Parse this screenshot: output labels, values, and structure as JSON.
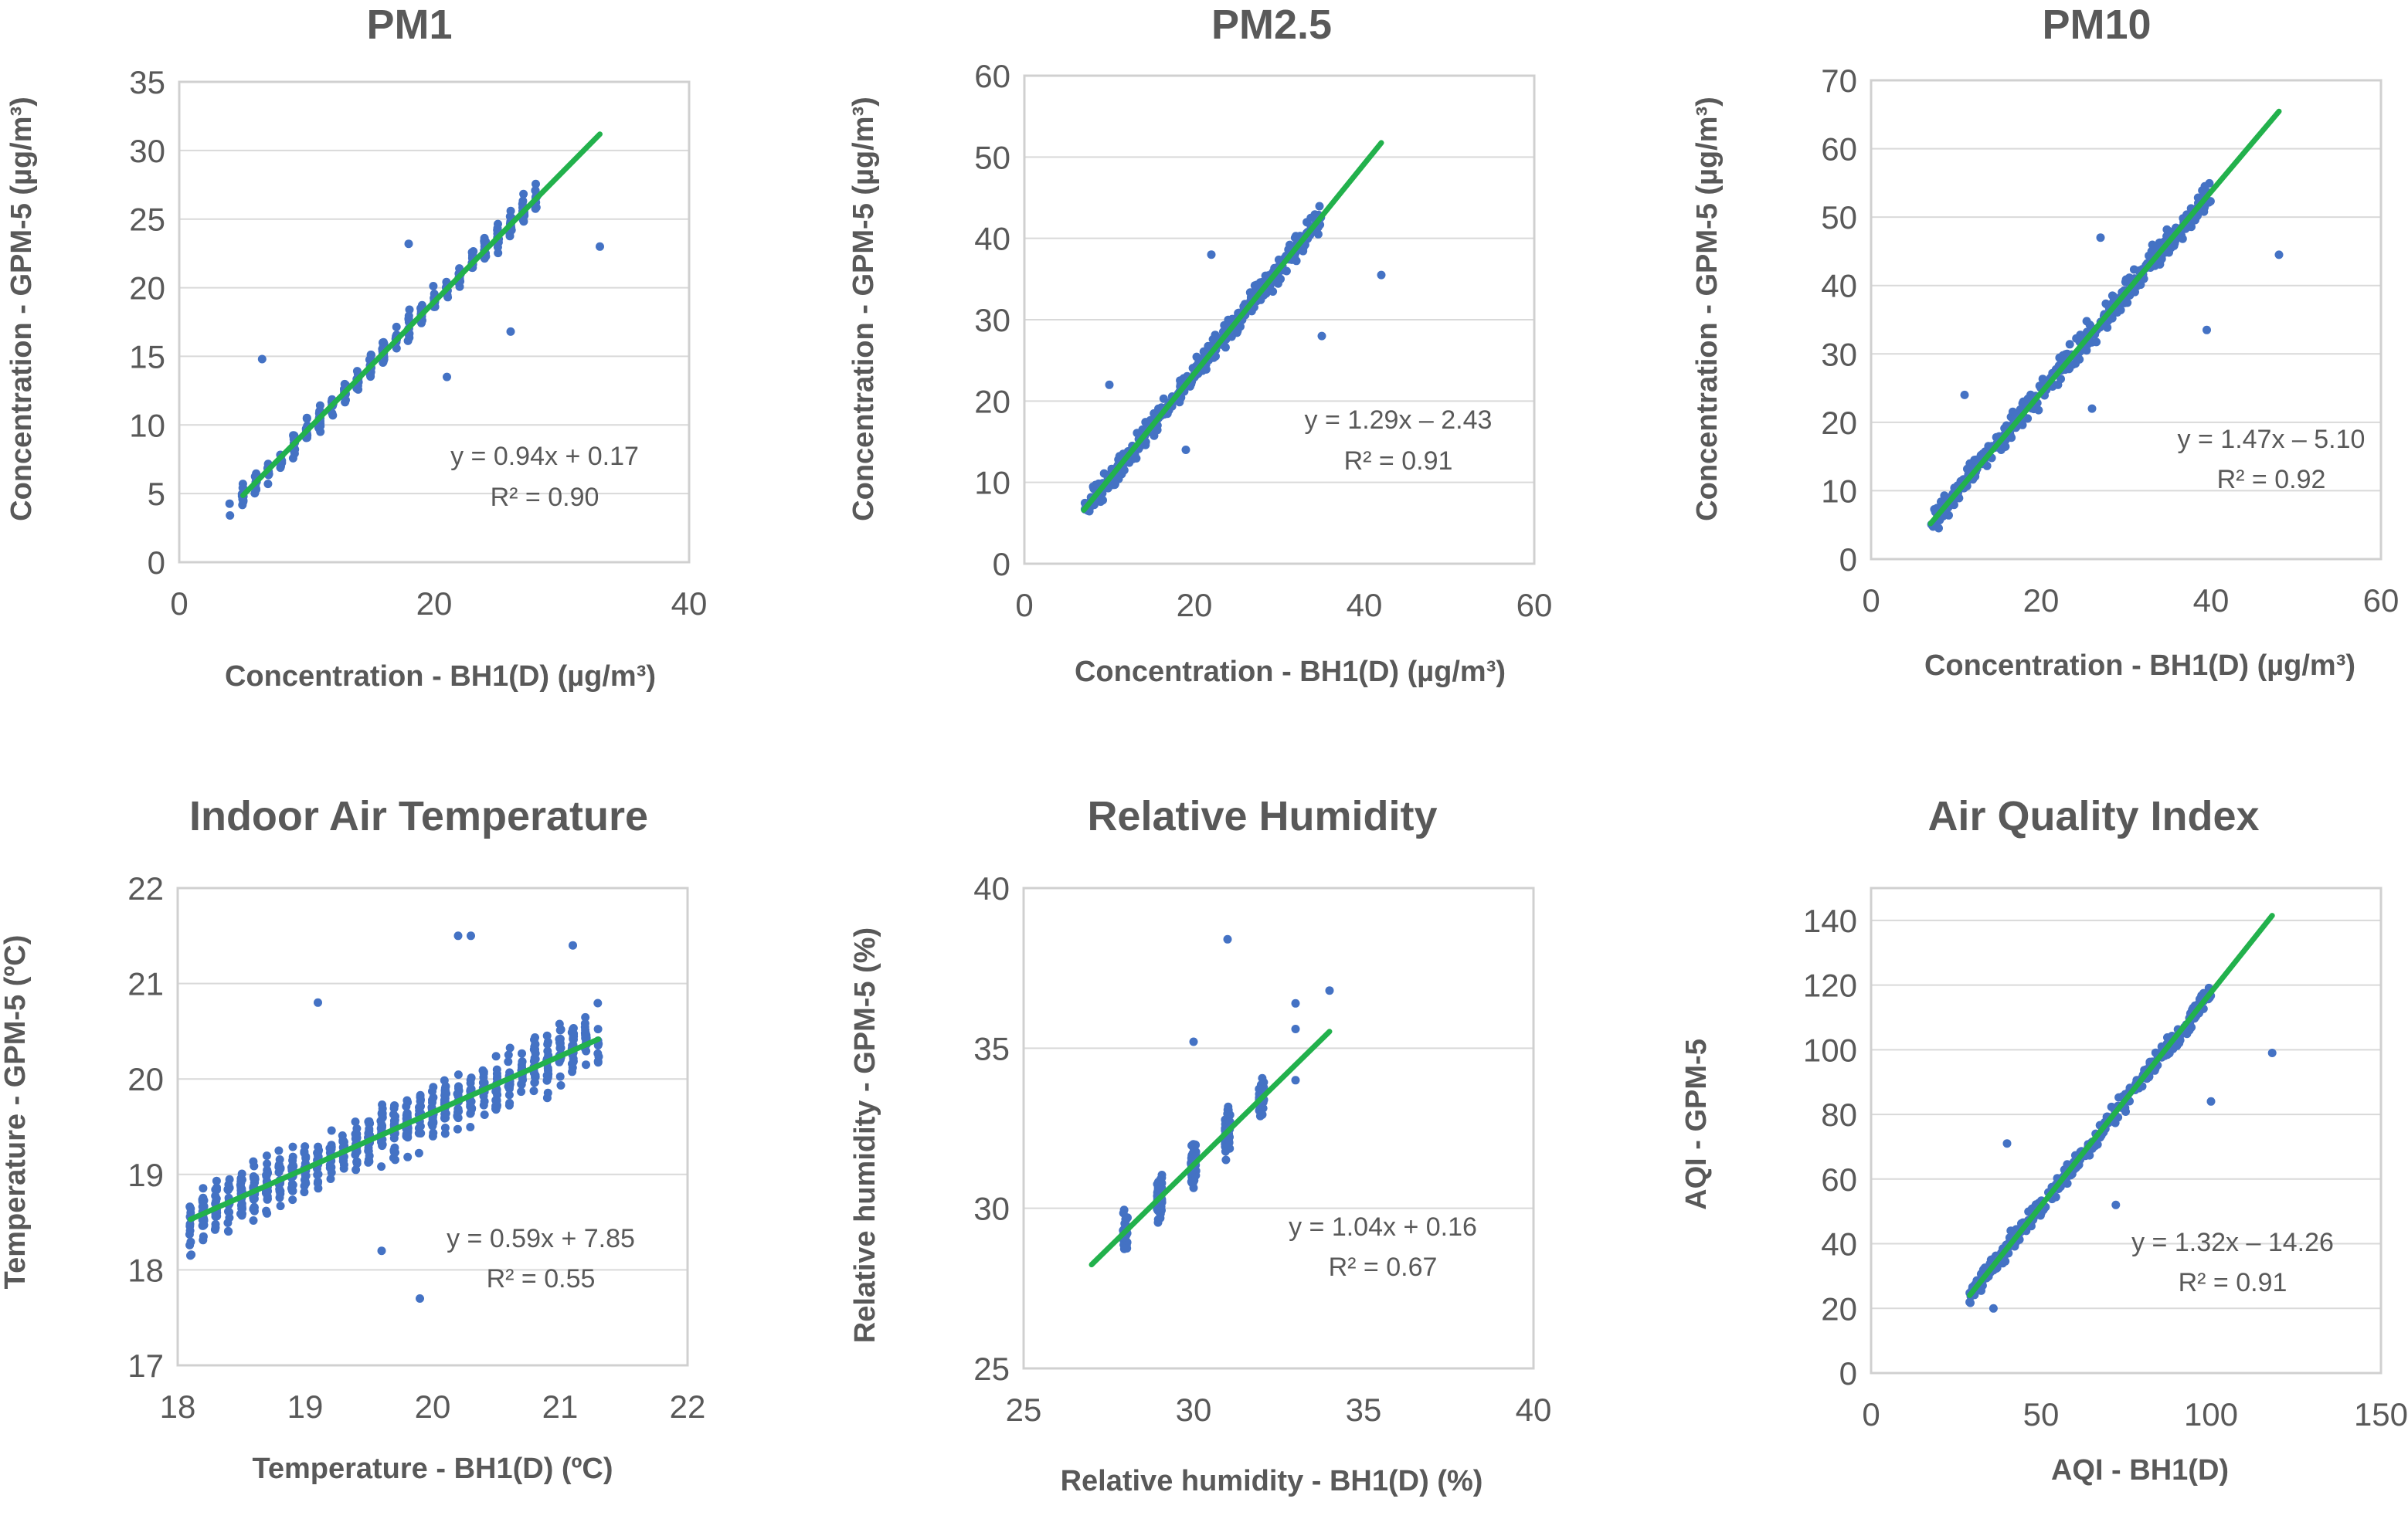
{
  "chart_data": [
    {
      "type": "scatter",
      "title": "PM1",
      "xlabel": "Concentration  - BH1(D) (µg/m³)",
      "ylabel": "Concentration  -  GPM-5 (µg/m³)",
      "xlim": [
        0,
        40
      ],
      "ylim": [
        0,
        35
      ],
      "xticks": [
        "0",
        "20",
        "40"
      ],
      "yticks": [
        "0",
        "5",
        "10",
        "15",
        "20",
        "25",
        "30",
        "35"
      ],
      "trendline": {
        "slope": 0.94,
        "intercept": 0.17,
        "x_range": [
          5,
          33
        ]
      },
      "equation": "y = 0.94x + 0.17",
      "r2": "R² = 0.90",
      "scatter": {
        "x_range": [
          4,
          28
        ],
        "spread": 1.4,
        "x_step": 1,
        "n": 350,
        "seed": 11
      },
      "outliers": [
        [
          33,
          23
        ],
        [
          6.5,
          14.8
        ],
        [
          18,
          23.2
        ],
        [
          21,
          13.5
        ],
        [
          26,
          16.8
        ]
      ]
    },
    {
      "type": "scatter",
      "title": "PM2.5",
      "xlabel": "Concentration  - BH1(D) (µg/m³)",
      "ylabel": "Concentration  -  GPM-5 (µg/m³)",
      "xlim": [
        0,
        60
      ],
      "ylim": [
        0,
        60
      ],
      "xticks": [
        "0",
        "20",
        "40",
        "60"
      ],
      "yticks": [
        "0",
        "10",
        "20",
        "30",
        "40",
        "50",
        "60"
      ],
      "trendline": {
        "slope": 1.29,
        "intercept": -2.43,
        "x_range": [
          7,
          42
        ]
      },
      "equation": "y = 1.29x – 2.43",
      "r2": "R² = 0.91",
      "scatter": {
        "x_range": [
          7,
          35
        ],
        "spread": 2.2,
        "x_step": 0,
        "n": 420,
        "seed": 23
      },
      "outliers": [
        [
          42,
          35.5
        ],
        [
          35,
          28
        ],
        [
          10,
          22
        ],
        [
          22,
          38
        ],
        [
          19,
          14
        ]
      ]
    },
    {
      "type": "scatter",
      "title": "PM10",
      "xlabel": "Concentration  - BH1(D) (µg/m³)",
      "ylabel": "Concentration  -  GPM-5 (µg/m³)",
      "xlim": [
        0,
        60
      ],
      "ylim": [
        0,
        70
      ],
      "xticks": [
        "0",
        "20",
        "40",
        "60"
      ],
      "yticks": [
        "0",
        "10",
        "20",
        "30",
        "40",
        "50",
        "60",
        "70"
      ],
      "trendline": {
        "slope": 1.47,
        "intercept": -5.1,
        "x_range": [
          7,
          48
        ]
      },
      "equation": "y = 1.47x – 5.10",
      "r2": "R² = 0.92",
      "scatter": {
        "x_range": [
          7,
          40
        ],
        "spread": 2.8,
        "x_step": 0,
        "n": 420,
        "seed": 37
      },
      "outliers": [
        [
          48,
          44.5
        ],
        [
          39.5,
          33.5
        ],
        [
          11,
          24
        ],
        [
          27,
          47
        ],
        [
          26,
          22
        ]
      ]
    },
    {
      "type": "scatter",
      "title": "Indoor Air Temperature",
      "xlabel": "Temperature - BH1(D) (ºC)",
      "ylabel": "Temperature  - GPM-5 (ºC)",
      "xlim": [
        18,
        22
      ],
      "ylim": [
        17,
        22
      ],
      "xticks": [
        "18",
        "19",
        "20",
        "21",
        "22"
      ],
      "yticks": [
        "17",
        "18",
        "19",
        "20",
        "21",
        "22"
      ],
      "trendline": {
        "slope": 0.59,
        "intercept": 7.85,
        "x_range": [
          18.1,
          21.3
        ]
      },
      "equation": "y = 0.59x + 7.85",
      "r2": "R² = 0.55",
      "scatter": {
        "x_range": [
          18.1,
          21.3
        ],
        "spread": 0.42,
        "x_step": 0.1,
        "n": 700,
        "seed": 41
      },
      "outliers": [
        [
          19.9,
          17.7
        ],
        [
          20.2,
          21.5
        ],
        [
          20.3,
          21.5
        ],
        [
          21.1,
          21.4
        ],
        [
          19.1,
          20.8
        ],
        [
          18.1,
          18.15
        ],
        [
          19.6,
          18.2
        ]
      ]
    },
    {
      "type": "scatter",
      "title": "Relative Humidity",
      "xlabel": "Relative humidity - BH1(D) (%)",
      "ylabel": "Relative humidity  - GPM-5 (%)",
      "xlim": [
        25,
        40
      ],
      "ylim": [
        25,
        40
      ],
      "xticks": [
        "25",
        "30",
        "35",
        "40"
      ],
      "yticks": [
        "25",
        "30",
        "35",
        "40"
      ],
      "trendline": {
        "slope": 1.04,
        "intercept": 0.16,
        "x_range": [
          27,
          34
        ]
      },
      "equation": "y = 1.04x + 0.16",
      "r2": "R² = 0.67",
      "scatter": {
        "x_range": [
          28,
          32
        ],
        "spread": 0.9,
        "x_step": 1,
        "n": 320,
        "seed": 53
      },
      "outliers": [
        [
          31,
          38.4
        ],
        [
          34,
          36.8
        ],
        [
          33,
          36.4
        ],
        [
          33,
          35.6
        ],
        [
          30,
          35.2
        ],
        [
          33,
          34
        ]
      ]
    },
    {
      "type": "scatter",
      "title": "Air Quality Index",
      "xlabel": "AQI - BH1(D)",
      "ylabel": "AQI - GPM-5",
      "xlim": [
        0,
        150
      ],
      "ylim": [
        0,
        150
      ],
      "xticks": [
        "0",
        "50",
        "100",
        "150"
      ],
      "yticks": [
        "0",
        "20",
        "40",
        "60",
        "80",
        "100",
        "120",
        "140"
      ],
      "trendline": {
        "slope": 1.32,
        "intercept": -14.26,
        "x_range": [
          29,
          118
        ]
      },
      "equation": "y = 1.32x – 14.26",
      "r2": "R² = 0.91",
      "scatter": {
        "x_range": [
          29,
          100
        ],
        "spread": 4.5,
        "x_step": 0,
        "n": 420,
        "seed": 67
      },
      "outliers": [
        [
          118,
          99
        ],
        [
          100,
          84
        ],
        [
          40,
          71
        ],
        [
          36,
          20
        ],
        [
          72,
          52
        ]
      ]
    }
  ]
}
